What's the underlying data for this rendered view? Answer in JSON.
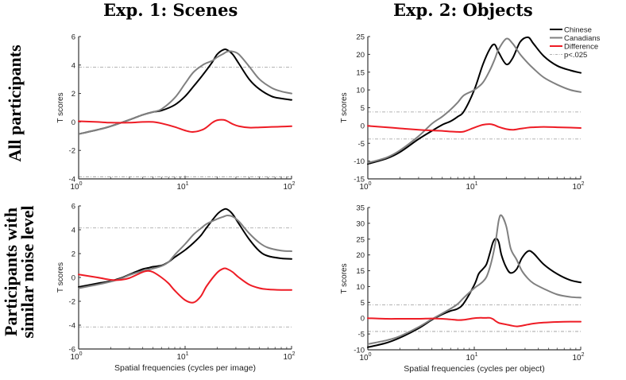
{
  "column_titles": [
    "Exp. 1: Scenes",
    "Exp. 2: Objects"
  ],
  "row_labels": [
    "All participants",
    "Participants with\nsimilar noise level"
  ],
  "row_label_lines": [
    [
      "All participants"
    ],
    [
      "Participants with",
      "similar noise level"
    ]
  ],
  "colors": {
    "chinese": "#000000",
    "canadians": "#808080",
    "difference": "#ee1c25",
    "threshold": "#9a9a9a",
    "axis": "#333333"
  },
  "legend": [
    {
      "label": "Chinese",
      "color": "#000000",
      "style": "solid"
    },
    {
      "label": "Canadians",
      "color": "#808080",
      "style": "solid"
    },
    {
      "label": "Difference",
      "color": "#ee1c25",
      "style": "solid"
    },
    {
      "label": "p<.025",
      "color": "#9a9a9a",
      "style": "dashdot"
    }
  ],
  "chart_data": [
    {
      "type": "line",
      "panel": "top-left",
      "title": "Exp. 1: Scenes",
      "row": "All participants",
      "xscale": "log",
      "xlim": [
        1,
        100
      ],
      "xticklabels": [
        "10^0",
        "10^1",
        "10^2"
      ],
      "ylabel": "T scores",
      "xlabel": "",
      "ylim": [
        -4,
        6
      ],
      "yticks": [
        -4,
        -2,
        0,
        2,
        4,
        6
      ],
      "threshold": 3.85,
      "x": [
        1,
        1.5,
        2,
        3,
        4,
        5,
        6,
        8,
        10,
        12,
        15,
        18,
        20,
        23,
        25,
        28,
        32,
        40,
        50,
        65,
        80,
        100
      ],
      "series": [
        {
          "name": "Chinese",
          "values": [
            -0.85,
            -0.55,
            -0.3,
            0.15,
            0.5,
            0.7,
            0.8,
            1.2,
            1.8,
            2.5,
            3.4,
            4.2,
            4.75,
            5.08,
            5.05,
            4.75,
            4.1,
            3.0,
            2.3,
            1.8,
            1.65,
            1.55
          ]
        },
        {
          "name": "Canadians",
          "values": [
            -0.85,
            -0.55,
            -0.3,
            0.15,
            0.5,
            0.7,
            0.9,
            1.7,
            2.7,
            3.5,
            4.05,
            4.3,
            4.55,
            4.8,
            4.95,
            4.95,
            4.75,
            3.9,
            3.0,
            2.4,
            2.15,
            2.0
          ]
        },
        {
          "name": "Difference",
          "values": [
            0.05,
            0.0,
            -0.05,
            -0.05,
            0.0,
            0.0,
            -0.1,
            -0.35,
            -0.6,
            -0.7,
            -0.5,
            -0.05,
            0.12,
            0.15,
            0.05,
            -0.15,
            -0.3,
            -0.4,
            -0.38,
            -0.35,
            -0.33,
            -0.3
          ]
        }
      ]
    },
    {
      "type": "line",
      "panel": "top-right",
      "title": "Exp. 2: Objects",
      "row": "All participants",
      "xscale": "log",
      "xlim": [
        1,
        100
      ],
      "xticklabels": [
        "10^0",
        "10^1",
        "10^2"
      ],
      "ylabel": "T scores",
      "xlabel": "",
      "ylim": [
        -15,
        25
      ],
      "yticks": [
        -15,
        -10,
        -5,
        0,
        5,
        10,
        15,
        20,
        25
      ],
      "threshold": 3.8,
      "legend_position": "top-right",
      "x": [
        1,
        1.5,
        2,
        3,
        4,
        5,
        6,
        7,
        8,
        10,
        12,
        14,
        15.5,
        17,
        20,
        23,
        27,
        32,
        36,
        45,
        60,
        80,
        100
      ],
      "series": [
        {
          "name": "Chinese",
          "values": [
            -10.8,
            -9.3,
            -7.5,
            -3.8,
            -1.5,
            0.2,
            1.2,
            2.5,
            4.0,
            10.0,
            17.0,
            21.5,
            22.8,
            20.5,
            17.2,
            19.0,
            23.5,
            24.8,
            23.0,
            19.5,
            16.8,
            15.5,
            14.8
          ]
        },
        {
          "name": "Canadians",
          "values": [
            -10.5,
            -9.0,
            -7.0,
            -3.0,
            0.5,
            2.5,
            4.5,
            6.5,
            8.5,
            10.0,
            12.0,
            15.5,
            18.5,
            21.5,
            24.4,
            23.0,
            20.0,
            17.5,
            16.0,
            13.5,
            11.5,
            10.0,
            9.4
          ]
        },
        {
          "name": "Difference",
          "values": [
            -0.1,
            -0.5,
            -0.8,
            -1.2,
            -1.4,
            -1.5,
            -1.7,
            -1.8,
            -1.7,
            -0.6,
            0.2,
            0.4,
            0.1,
            -0.4,
            -1.0,
            -1.2,
            -0.9,
            -0.6,
            -0.5,
            -0.4,
            -0.5,
            -0.6,
            -0.7
          ]
        }
      ]
    },
    {
      "type": "line",
      "panel": "bottom-left",
      "title": "",
      "row": "Participants with similar noise level",
      "xscale": "log",
      "xlim": [
        1,
        100
      ],
      "xticklabels": [
        "10^0",
        "10^1",
        "10^2"
      ],
      "ylabel": "T scores",
      "xlabel": "Spatial frequencies (cycles per image)",
      "ylim": [
        -6,
        6
      ],
      "yticks": [
        -6,
        -4,
        -2,
        0,
        2,
        4,
        6
      ],
      "threshold": 4.15,
      "x": [
        1,
        1.5,
        2,
        2.5,
        3,
        4,
        4.5,
        5,
        6,
        7,
        8,
        10,
        12,
        14,
        16,
        20,
        23,
        25,
        28,
        32,
        40,
        50,
        60,
        80,
        100
      ],
      "series": [
        {
          "name": "Chinese",
          "values": [
            -0.8,
            -0.5,
            -0.3,
            -0.05,
            0.25,
            0.7,
            0.8,
            0.9,
            1.0,
            1.3,
            1.7,
            2.3,
            2.9,
            3.5,
            4.2,
            5.3,
            5.7,
            5.7,
            5.3,
            4.5,
            3.2,
            2.2,
            1.8,
            1.6,
            1.55
          ]
        },
        {
          "name": "Canadians",
          "values": [
            -0.9,
            -0.6,
            -0.35,
            -0.1,
            0.2,
            0.55,
            0.65,
            0.75,
            0.95,
            1.3,
            1.9,
            2.8,
            3.6,
            4.1,
            4.5,
            4.9,
            5.1,
            5.2,
            5.1,
            4.7,
            3.7,
            2.9,
            2.5,
            2.25,
            2.2
          ]
        },
        {
          "name": "Difference",
          "values": [
            0.25,
            0.0,
            -0.2,
            -0.2,
            -0.05,
            0.45,
            0.55,
            0.45,
            0.0,
            -0.5,
            -1.1,
            -1.9,
            -2.1,
            -1.6,
            -0.7,
            0.4,
            0.75,
            0.7,
            0.45,
            0.0,
            -0.6,
            -0.9,
            -1.0,
            -1.05,
            -1.05
          ]
        }
      ]
    },
    {
      "type": "line",
      "panel": "bottom-right",
      "title": "",
      "row": "Participants with similar noise level",
      "xscale": "log",
      "xlim": [
        1,
        100
      ],
      "xticklabels": [
        "10^0",
        "10^1",
        "10^2"
      ],
      "ylabel": "T scores",
      "xlabel": "Spatial frequencies (cycles per object)",
      "ylim": [
        -10,
        35
      ],
      "yticks": [
        -10,
        -5,
        0,
        5,
        10,
        15,
        20,
        25,
        30,
        35
      ],
      "threshold": 4.2,
      "x": [
        1,
        1.5,
        2,
        3,
        4,
        5,
        6,
        7,
        8,
        10,
        11,
        12,
        13,
        14,
        15,
        16,
        17,
        18,
        20,
        22,
        25,
        28,
        32,
        36,
        45,
        60,
        80,
        100
      ],
      "series": [
        {
          "name": "Chinese",
          "values": [
            -9.2,
            -7.8,
            -6.2,
            -3.2,
            -0.5,
            1.2,
            2.3,
            3.0,
            4.8,
            10.5,
            14.0,
            15.5,
            17.0,
            20.5,
            24.0,
            25.2,
            24.0,
            20.0,
            16.0,
            14.3,
            15.5,
            19.0,
            21.2,
            20.5,
            17.0,
            14.0,
            12.0,
            11.3
          ]
        },
        {
          "name": "Canadians",
          "values": [
            -8.2,
            -7.0,
            -5.7,
            -2.8,
            -0.3,
            1.5,
            3.0,
            4.5,
            6.5,
            9.5,
            10.5,
            11.5,
            13.0,
            16.0,
            20.0,
            25.0,
            31.0,
            32.5,
            29.0,
            22.0,
            18.5,
            15.0,
            12.5,
            11.0,
            9.3,
            7.5,
            6.7,
            6.5
          ]
        },
        {
          "name": "Difference",
          "values": [
            0.0,
            -0.2,
            -0.2,
            -0.2,
            -0.1,
            -0.2,
            -0.4,
            -0.6,
            -0.5,
            0.0,
            0.1,
            0.1,
            0.1,
            0.1,
            -0.3,
            -1.0,
            -1.5,
            -1.7,
            -2.0,
            -2.3,
            -2.6,
            -2.4,
            -2.0,
            -1.7,
            -1.4,
            -1.2,
            -1.1,
            -1.1
          ]
        }
      ]
    }
  ]
}
